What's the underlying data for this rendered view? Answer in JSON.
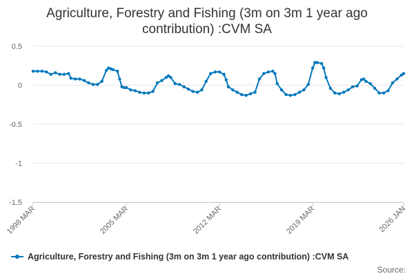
{
  "title_lines": [
    "Agriculture, Forestry and Fishing (3m on 3m 1 year ago",
    "contribution) :CVM SA"
  ],
  "source_label": "Source:",
  "colors": {
    "series": "#0077bb",
    "grid": "#e6e6e6",
    "axis_text": "#666666"
  },
  "chart_data": {
    "type": "line",
    "title": "Agriculture, Forestry and Fishing (3m on 3m 1 year ago contribution) :CVM SA",
    "xlabel": "",
    "ylabel": "",
    "xlim": [
      "1998 MAR",
      "2026 JAN"
    ],
    "ylim": [
      -1.5,
      0.5
    ],
    "yticks": [
      "0.5",
      "0",
      "-0.5",
      "-1",
      "-1.5"
    ],
    "xticks": [
      "1998 MAR",
      "2005 MAR",
      "2012 MAR",
      "2019 MAR",
      "2026 JAN"
    ],
    "legend": "bottom",
    "grid": true,
    "series": [
      {
        "name": "Agriculture, Forestry and Fishing (3m on 3m 1 year ago contribution) :CVM SA",
        "points": [
          [
            "1998-03",
            0.18
          ],
          [
            "1998-07",
            0.18
          ],
          [
            "1998-11",
            0.18
          ],
          [
            "1999-03",
            0.17
          ],
          [
            "1999-07",
            0.14
          ],
          [
            "1999-11",
            0.16
          ],
          [
            "2000-03",
            0.14
          ],
          [
            "2000-07",
            0.14
          ],
          [
            "2000-11",
            0.15
          ],
          [
            "2001-01",
            0.09
          ],
          [
            "2001-05",
            0.08
          ],
          [
            "2001-09",
            0.08
          ],
          [
            "2002-01",
            0.06
          ],
          [
            "2002-05",
            0.03
          ],
          [
            "2002-09",
            0.01
          ],
          [
            "2003-01",
            0.01
          ],
          [
            "2003-05",
            0.05
          ],
          [
            "2003-09",
            0.19
          ],
          [
            "2003-11",
            0.22
          ],
          [
            "2004-01",
            0.21
          ],
          [
            "2004-03",
            0.2
          ],
          [
            "2004-07",
            0.18
          ],
          [
            "2004-09",
            0.08
          ],
          [
            "2004-11",
            -0.02
          ],
          [
            "2005-01",
            -0.03
          ],
          [
            "2005-03",
            -0.03
          ],
          [
            "2005-07",
            -0.06
          ],
          [
            "2005-11",
            -0.07
          ],
          [
            "2006-03",
            -0.09
          ],
          [
            "2006-07",
            -0.1
          ],
          [
            "2006-11",
            -0.1
          ],
          [
            "2007-03",
            -0.08
          ],
          [
            "2007-07",
            0.03
          ],
          [
            "2007-11",
            0.06
          ],
          [
            "2008-03",
            0.1
          ],
          [
            "2008-05",
            0.12
          ],
          [
            "2008-07",
            0.1
          ],
          [
            "2008-11",
            0.02
          ],
          [
            "2009-03",
            0.01
          ],
          [
            "2009-07",
            -0.02
          ],
          [
            "2009-11",
            -0.05
          ],
          [
            "2010-03",
            -0.08
          ],
          [
            "2010-07",
            -0.09
          ],
          [
            "2010-11",
            -0.06
          ],
          [
            "2011-03",
            0.05
          ],
          [
            "2011-07",
            0.15
          ],
          [
            "2011-11",
            0.17
          ],
          [
            "2012-03",
            0.17
          ],
          [
            "2012-07",
            0.14
          ],
          [
            "2012-09",
            0.07
          ],
          [
            "2012-11",
            -0.02
          ],
          [
            "2013-03",
            -0.06
          ],
          [
            "2013-07",
            -0.09
          ],
          [
            "2013-11",
            -0.12
          ],
          [
            "2014-03",
            -0.13
          ],
          [
            "2014-07",
            -0.11
          ],
          [
            "2014-11",
            -0.09
          ],
          [
            "2015-03",
            0.08
          ],
          [
            "2015-07",
            0.15
          ],
          [
            "2015-11",
            0.17
          ],
          [
            "2016-03",
            0.18
          ],
          [
            "2016-05",
            0.15
          ],
          [
            "2016-07",
            0.02
          ],
          [
            "2016-11",
            -0.06
          ],
          [
            "2017-03",
            -0.12
          ],
          [
            "2017-07",
            -0.13
          ],
          [
            "2017-11",
            -0.12
          ],
          [
            "2018-03",
            -0.09
          ],
          [
            "2018-07",
            -0.06
          ],
          [
            "2018-11",
            0.01
          ],
          [
            "2019-03",
            0.22
          ],
          [
            "2019-05",
            0.29
          ],
          [
            "2019-07",
            0.29
          ],
          [
            "2019-11",
            0.28
          ],
          [
            "2020-01",
            0.22
          ],
          [
            "2020-03",
            0.1
          ],
          [
            "2020-07",
            -0.04
          ],
          [
            "2020-11",
            -0.1
          ],
          [
            "2021-03",
            -0.11
          ],
          [
            "2021-07",
            -0.09
          ],
          [
            "2021-11",
            -0.06
          ],
          [
            "2022-03",
            -0.02
          ],
          [
            "2022-07",
            -0.01
          ],
          [
            "2022-11",
            0.07
          ],
          [
            "2023-01",
            0.08
          ],
          [
            "2023-03",
            0.05
          ],
          [
            "2023-07",
            0.02
          ],
          [
            "2023-11",
            -0.04
          ],
          [
            "2024-03",
            -0.1
          ],
          [
            "2024-07",
            -0.1
          ],
          [
            "2024-11",
            -0.07
          ],
          [
            "2025-03",
            0.03
          ],
          [
            "2025-07",
            0.08
          ],
          [
            "2025-11",
            0.13
          ],
          [
            "2026-01",
            0.15
          ]
        ]
      }
    ]
  }
}
